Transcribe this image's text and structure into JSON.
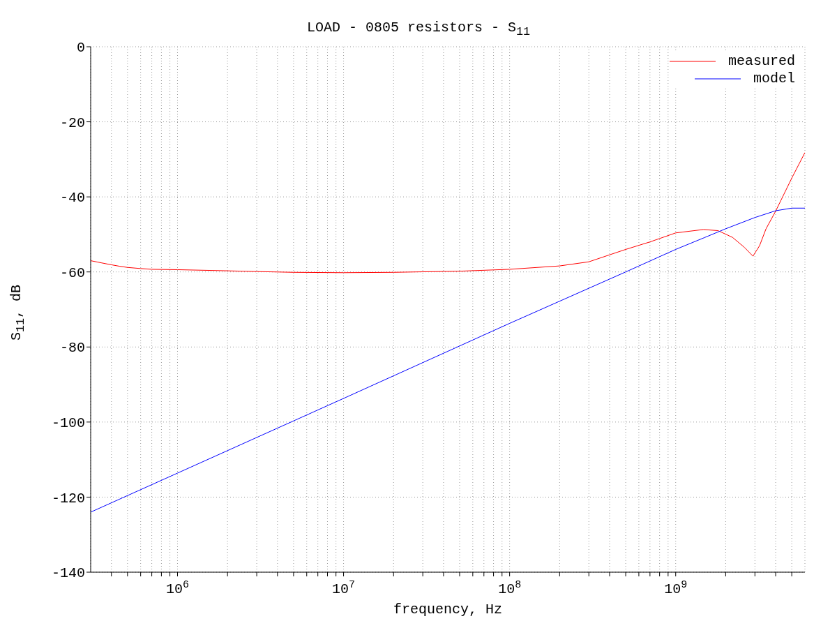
{
  "chart_data": {
    "type": "line",
    "title": "LOAD - 0805 resistors - S$_{11}$",
    "xlabel": "frequency, Hz",
    "ylabel": "S$_{11}$, dB",
    "log": "x",
    "grid": true,
    "legend": "top right",
    "line_style": "solid",
    "marker": "none",
    "xlim": [
      300000,
      6000000000
    ],
    "ylim": [
      -140,
      0
    ],
    "xticks": [
      {
        "value": 400000,
        "label": null
      },
      {
        "value": 500000,
        "label": null
      },
      {
        "value": 600000,
        "label": null
      },
      {
        "value": 700000,
        "label": null
      },
      {
        "value": 800000,
        "label": null
      },
      {
        "value": 900000,
        "label": null
      },
      {
        "value": 1000000,
        "label": "10$^{6}$"
      },
      {
        "value": 2000000,
        "label": null
      },
      {
        "value": 3000000,
        "label": null
      },
      {
        "value": 4000000,
        "label": null
      },
      {
        "value": 5000000,
        "label": null
      },
      {
        "value": 6000000,
        "label": null
      },
      {
        "value": 7000000,
        "label": null
      },
      {
        "value": 8000000,
        "label": null
      },
      {
        "value": 9000000,
        "label": null
      },
      {
        "value": 10000000,
        "label": "10$^{7}$"
      },
      {
        "value": 20000000,
        "label": null
      },
      {
        "value": 30000000,
        "label": null
      },
      {
        "value": 40000000,
        "label": null
      },
      {
        "value": 50000000,
        "label": null
      },
      {
        "value": 60000000,
        "label": null
      },
      {
        "value": 70000000,
        "label": null
      },
      {
        "value": 80000000,
        "label": null
      },
      {
        "value": 90000000,
        "label": null
      },
      {
        "value": 100000000,
        "label": "10$^{8}$"
      },
      {
        "value": 200000000,
        "label": null
      },
      {
        "value": 300000000,
        "label": null
      },
      {
        "value": 400000000,
        "label": null
      },
      {
        "value": 500000000,
        "label": null
      },
      {
        "value": 600000000,
        "label": null
      },
      {
        "value": 700000000,
        "label": null
      },
      {
        "value": 800000000,
        "label": null
      },
      {
        "value": 900000000,
        "label": null
      },
      {
        "value": 1000000000,
        "label": "10$^{9}$"
      },
      {
        "value": 2000000000,
        "label": null
      },
      {
        "value": 3000000000,
        "label": null
      },
      {
        "value": 4000000000,
        "label": null
      },
      {
        "value": 5000000000,
        "label": null
      }
    ],
    "yticks": [
      -140,
      -120,
      -100,
      -80,
      -60,
      -40,
      -20,
      0
    ],
    "series": [
      {
        "name": "measured",
        "color": "#ff0000",
        "x": [
          300000,
          350000,
          400000,
          450000,
          500000,
          600000,
          700000,
          1000000,
          2000000,
          3000000,
          5000000,
          10000000,
          20000000,
          50000000,
          100000000,
          200000000,
          300000000,
          500000000,
          700000000,
          1000000000,
          1470000000,
          1800000000,
          2200000000,
          2600000000,
          2920000000,
          3200000000,
          3500000000,
          4000000000,
          5000000000,
          6000000000
        ],
        "values": [
          -57.0,
          -57.6,
          -58.1,
          -58.5,
          -58.8,
          -59.1,
          -59.3,
          -59.4,
          -59.7,
          -59.9,
          -60.1,
          -60.2,
          -60.1,
          -59.8,
          -59.3,
          -58.4,
          -57.3,
          -54.0,
          -52.0,
          -49.6,
          -48.7,
          -49.0,
          -50.8,
          -53.5,
          -55.8,
          -53.0,
          -48.5,
          -43.8,
          -35.0,
          -28.2
        ]
      },
      {
        "name": "model",
        "color": "#0000ff",
        "x": [
          300000,
          1000000,
          10000000,
          100000000,
          500000000,
          1000000000,
          1500000000,
          2000000000,
          3000000000,
          4000000000,
          5000000000,
          6000000000
        ],
        "values": [
          -124.0,
          -113.6,
          -93.7,
          -73.7,
          -60.0,
          -54.0,
          -50.8,
          -48.5,
          -45.5,
          -43.7,
          -43.0,
          -43.0
        ]
      }
    ]
  }
}
